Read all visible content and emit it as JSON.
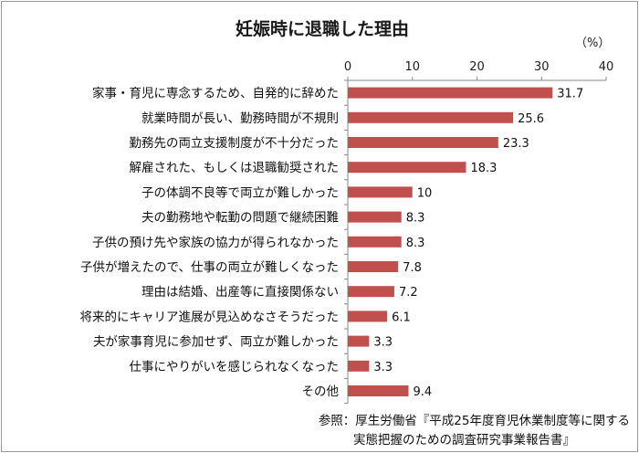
{
  "chart_data": {
    "type": "bar",
    "orientation": "horizontal",
    "title": "妊娠時に退職した理由",
    "unit_label": "（%）",
    "xlim": [
      0,
      40
    ],
    "xticks": [
      "0",
      "10",
      "20",
      "30",
      "40"
    ],
    "grid": false,
    "bar_color": "#c0504d",
    "categories": [
      "家事・育児に専念するため、自発的に辞めた",
      "就業時間が長い、勤務時間が不規則",
      "勤務先の両立支援制度が不十分だった",
      "解雇された、もしくは退職勧奨された",
      "子の体調不良等で両立が難しかった",
      "夫の勤務地や転勤の問題で継続困難",
      "子供の預け先や家族の協力が得られなかった",
      "子供が増えたので、仕事の両立が難しくなった",
      "理由は結婚、出産等に直接関係ない",
      "将来的にキャリア進展が見込めなさそうだった",
      "夫が家事育児に参加せず、両立が難しかった",
      "仕事にやりがいを感じられなくなった",
      "その他"
    ],
    "values": [
      31.7,
      25.6,
      23.3,
      18.3,
      10,
      8.3,
      8.3,
      7.8,
      7.2,
      6.1,
      3.3,
      3.3,
      9.4
    ],
    "value_labels": [
      "31.7",
      "25.6",
      "23.3",
      "18.3",
      "10",
      "8.3",
      "8.3",
      "7.8",
      "7.2",
      "6.1",
      "3.3",
      "3.3",
      "9.4"
    ]
  },
  "source": {
    "line1": "参照：厚生労働省『平成25年度育児休業制度等に関する",
    "line2": "実態把握のための調査研究事業報告書』"
  }
}
